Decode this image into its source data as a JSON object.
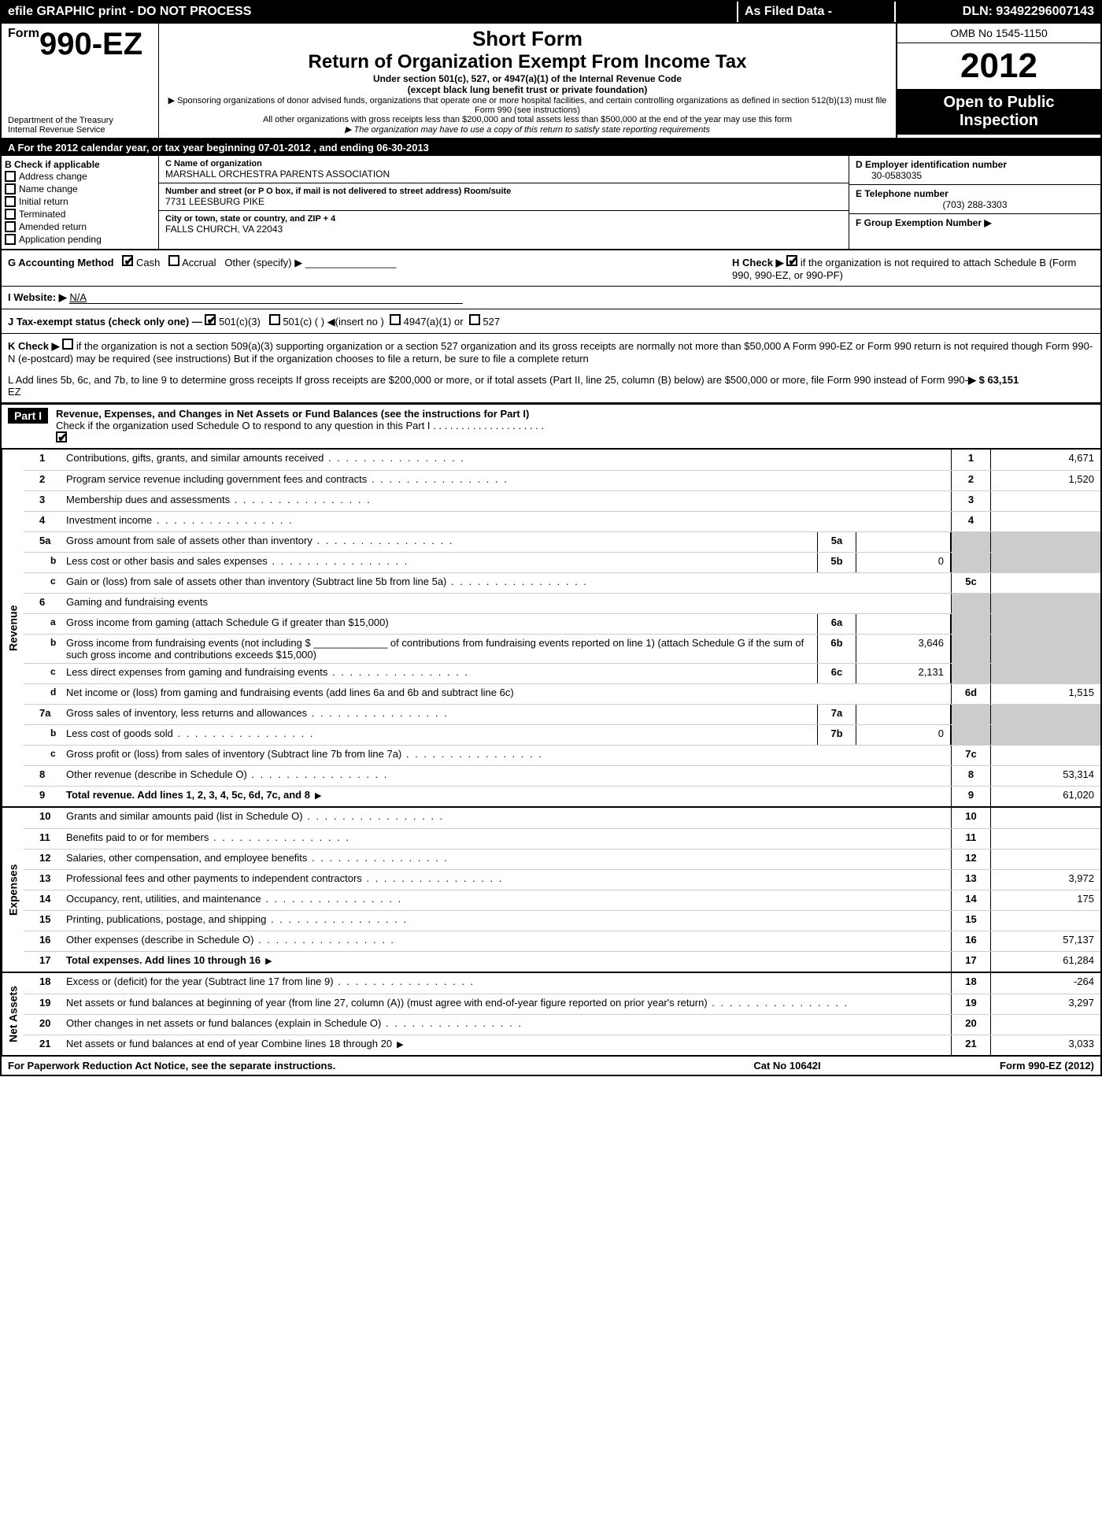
{
  "topbar": {
    "left": "efile GRAPHIC print - DO NOT PROCESS",
    "mid": "As Filed Data -",
    "dln": "DLN: 93492296007143"
  },
  "header": {
    "form_prefix": "Form",
    "form_number": "990-EZ",
    "dept": "Department of the Treasury",
    "irs": "Internal Revenue Service",
    "short_form": "Short Form",
    "title": "Return of Organization Exempt From Income Tax",
    "sub1": "Under section 501(c), 527, or 4947(a)(1) of the Internal Revenue Code",
    "sub2": "(except black lung benefit trust or private foundation)",
    "note1": "▶ Sponsoring organizations of donor advised funds, organizations that operate one or more hospital facilities, and certain controlling organizations as defined in section 512(b)(13) must file Form 990 (see instructions)",
    "note2": "All other organizations with gross receipts less than $200,000 and total assets less than $500,000 at the end of the year may use this form",
    "note3": "▶ The organization may have to use a copy of this return to satisfy state reporting requirements",
    "omb": "OMB No  1545-1150",
    "year": "2012",
    "open": "Open to Public Inspection"
  },
  "rowA": "A  For the 2012 calendar year, or tax year beginning 07-01-2012              , and ending 06-30-2013",
  "sectionB": {
    "title": "B  Check if applicable",
    "checks": [
      "Address change",
      "Name change",
      "Initial return",
      "Terminated",
      "Amended return",
      "Application pending"
    ],
    "c_lbl": "C Name of organization",
    "c_name": "MARSHALL ORCHESTRA PARENTS ASSOCIATION",
    "addr_lbl": "Number and street (or P O box, if mail is not delivered to street address) Room/suite",
    "addr": "7731 LEESBURG PIKE",
    "city_lbl": "City or town, state or country, and ZIP + 4",
    "city": "FALLS CHURCH, VA  22043",
    "d_lbl": "D Employer identification number",
    "d_val": "30-0583035",
    "e_lbl": "E Telephone number",
    "e_val": "(703) 288-3303",
    "f_lbl": "F Group Exemption Number  ▶"
  },
  "middle": {
    "g": "G Accounting Method",
    "g_cash": "Cash",
    "g_accrual": "Accrual",
    "g_other": "Other (specify) ▶",
    "h": "H  Check ▶",
    "h_text": "if the organization is not required to attach Schedule B (Form 990, 990-EZ, or 990-PF)",
    "i": "I Website: ▶",
    "i_val": "N/A",
    "j": "J Tax-exempt status (check only one) —",
    "j_501c3": "501(c)(3)",
    "j_501c": "501(c) (   ) ◀(insert no )",
    "j_4947": "4947(a)(1) or",
    "j_527": "527",
    "k": "K Check ▶",
    "k_text": "if the organization is not a section 509(a)(3) supporting organization or a section 527 organization and its gross receipts are normally not more than $50,000  A Form 990-EZ or Form 990 return is not required though Form 990-N (e-postcard) may be required (see instructions)  But if the organization chooses to file a return, be sure to file a complete return",
    "l": "L Add lines 5b, 6c, and 7b, to line 9 to determine gross receipts  If gross receipts are $200,000 or more, or if total assets (Part II, line 25, column (B) below) are $500,000 or more, file Form 990 instead of Form 990-EZ",
    "l_val": "▶ $ 63,151"
  },
  "part1": {
    "label": "Part I",
    "title": "Revenue, Expenses, and Changes in Net Assets or Fund Balances (see the instructions for Part I)",
    "sub": "Check if the organization used Schedule O to respond to any question in this Part I  .  .  .  .  .  .  .  .  .  .  .  .  .  .  .  .  .  .  .  ."
  },
  "sides": {
    "revenue": "Revenue",
    "expenses": "Expenses",
    "netassets": "Net Assets"
  },
  "lines": {
    "l1": {
      "n": "1",
      "d": "Contributions, gifts, grants, and similar amounts received",
      "v": "4,671"
    },
    "l2": {
      "n": "2",
      "d": "Program service revenue including government fees and contracts",
      "v": "1,520"
    },
    "l3": {
      "n": "3",
      "d": "Membership dues and assessments",
      "v": ""
    },
    "l4": {
      "n": "4",
      "d": "Investment income",
      "v": ""
    },
    "l5a": {
      "n": "5a",
      "d": "Gross amount from sale of assets other than inventory",
      "mn": "5a",
      "mv": ""
    },
    "l5b": {
      "n": "b",
      "d": "Less  cost or other basis and sales expenses",
      "mn": "5b",
      "mv": "0"
    },
    "l5c": {
      "n": "c",
      "d": "Gain or (loss) from sale of assets other than inventory (Subtract line 5b from line 5a)",
      "en": "5c",
      "v": ""
    },
    "l6": {
      "n": "6",
      "d": "Gaming and fundraising events"
    },
    "l6a": {
      "n": "a",
      "d": "Gross income from gaming (attach Schedule G if greater than $15,000)",
      "mn": "6a",
      "mv": ""
    },
    "l6b": {
      "n": "b",
      "d": "Gross income from fundraising events (not including $ _____________ of contributions from fundraising events reported on line 1) (attach Schedule G if the sum of such gross income and contributions exceeds $15,000)",
      "mn": "6b",
      "mv": "3,646"
    },
    "l6c": {
      "n": "c",
      "d": "Less  direct expenses from gaming and fundraising events",
      "mn": "6c",
      "mv": "2,131"
    },
    "l6d": {
      "n": "d",
      "d": "Net income or (loss) from gaming and fundraising events (add lines 6a and 6b and subtract line 6c)",
      "en": "6d",
      "v": "1,515"
    },
    "l7a": {
      "n": "7a",
      "d": "Gross sales of inventory, less returns and allowances",
      "mn": "7a",
      "mv": ""
    },
    "l7b": {
      "n": "b",
      "d": "Less  cost of goods sold",
      "mn": "7b",
      "mv": "0"
    },
    "l7c": {
      "n": "c",
      "d": "Gross profit or (loss) from sales of inventory (Subtract line 7b from line 7a)",
      "en": "7c",
      "v": ""
    },
    "l8": {
      "n": "8",
      "d": "Other revenue (describe in Schedule O)",
      "v": "53,314"
    },
    "l9": {
      "n": "9",
      "d": "Total revenue. Add lines 1, 2, 3, 4, 5c, 6d, 7c, and 8",
      "v": "61,020",
      "arrow": true,
      "bold": true
    },
    "l10": {
      "n": "10",
      "d": "Grants and similar amounts paid (list in Schedule O)",
      "v": ""
    },
    "l11": {
      "n": "11",
      "d": "Benefits paid to or for members",
      "v": ""
    },
    "l12": {
      "n": "12",
      "d": "Salaries, other compensation, and employee benefits",
      "v": ""
    },
    "l13": {
      "n": "13",
      "d": "Professional fees and other payments to independent contractors",
      "v": "3,972"
    },
    "l14": {
      "n": "14",
      "d": "Occupancy, rent, utilities, and maintenance",
      "v": "175"
    },
    "l15": {
      "n": "15",
      "d": "Printing, publications, postage, and shipping",
      "v": ""
    },
    "l16": {
      "n": "16",
      "d": "Other expenses (describe in Schedule O)",
      "v": "57,137"
    },
    "l17": {
      "n": "17",
      "d": "Total expenses. Add lines 10 through 16",
      "v": "61,284",
      "arrow": true,
      "bold": true
    },
    "l18": {
      "n": "18",
      "d": "Excess or (deficit) for the year (Subtract line 17 from line 9)",
      "v": "-264"
    },
    "l19": {
      "n": "19",
      "d": "Net assets or fund balances at beginning of year (from line 27, column (A)) (must agree with end-of-year figure reported on prior year's return)",
      "v": "3,297"
    },
    "l20": {
      "n": "20",
      "d": "Other changes in net assets or fund balances (explain in Schedule O)",
      "v": ""
    },
    "l21": {
      "n": "21",
      "d": "Net assets or fund balances at end of year  Combine lines 18 through 20",
      "v": "3,033",
      "arrow": true
    }
  },
  "footer": {
    "left": "For Paperwork Reduction Act Notice, see the separate instructions.",
    "mid": "Cat No  10642I",
    "right": "Form 990-EZ (2012)"
  }
}
